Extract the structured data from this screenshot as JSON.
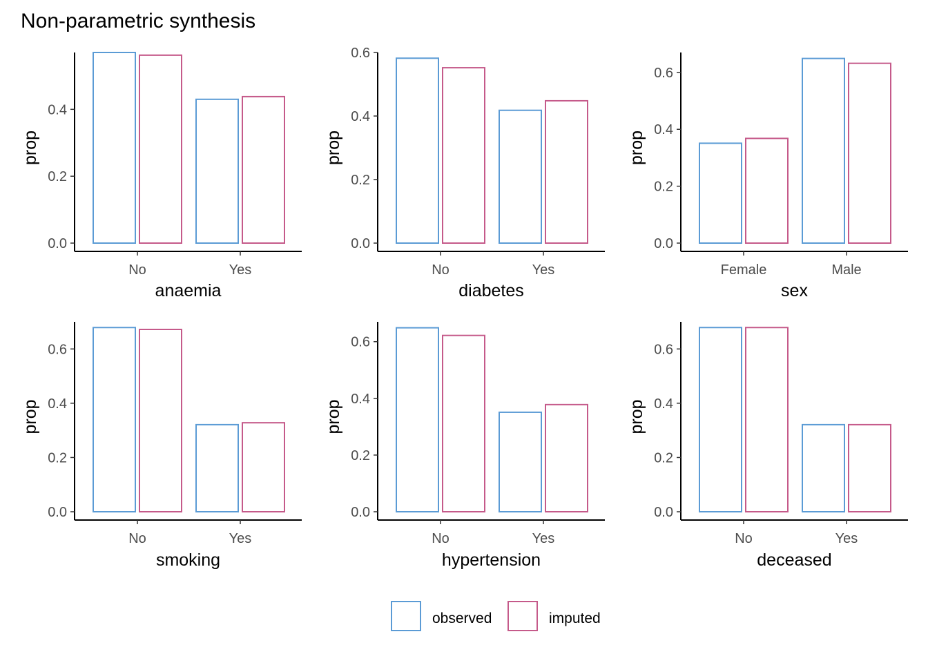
{
  "title": "Non-parametric synthesis",
  "colors": {
    "observed": "#5b9bd5",
    "imputed": "#c55a8a",
    "axis": "#000000",
    "tick_label": "#4d4d4d"
  },
  "legend": {
    "position": "bottom",
    "items": [
      "observed",
      "imputed"
    ]
  },
  "chart_data": [
    {
      "type": "bar",
      "xlabel": "anaemia",
      "ylabel": "prop",
      "categories": [
        "No",
        "Yes"
      ],
      "series": [
        {
          "name": "observed",
          "values": [
            0.57,
            0.43
          ]
        },
        {
          "name": "imputed",
          "values": [
            0.562,
            0.438
          ]
        }
      ],
      "ylim": [
        0,
        0.57
      ],
      "yticks": [
        "0.0",
        "0.2",
        "0.4"
      ],
      "ytick_values": [
        0,
        0.2,
        0.4
      ]
    },
    {
      "type": "bar",
      "xlabel": "diabetes",
      "ylabel": "prop",
      "categories": [
        "No",
        "Yes"
      ],
      "series": [
        {
          "name": "observed",
          "values": [
            0.582,
            0.418
          ]
        },
        {
          "name": "imputed",
          "values": [
            0.552,
            0.448
          ]
        }
      ],
      "ylim": [
        0,
        0.6
      ],
      "yticks": [
        "0.0",
        "0.2",
        "0.4",
        "0.6"
      ],
      "ytick_values": [
        0,
        0.2,
        0.4,
        0.6
      ]
    },
    {
      "type": "bar",
      "xlabel": "sex",
      "ylabel": "prop",
      "categories": [
        "Female",
        "Male"
      ],
      "series": [
        {
          "name": "observed",
          "values": [
            0.351,
            0.649
          ]
        },
        {
          "name": "imputed",
          "values": [
            0.368,
            0.632
          ]
        }
      ],
      "ylim": [
        0,
        0.67
      ],
      "yticks": [
        "0.0",
        "0.2",
        "0.4",
        "0.6"
      ],
      "ytick_values": [
        0,
        0.2,
        0.4,
        0.6
      ]
    },
    {
      "type": "bar",
      "xlabel": "smoking",
      "ylabel": "prop",
      "categories": [
        "No",
        "Yes"
      ],
      "series": [
        {
          "name": "observed",
          "values": [
            0.679,
            0.321
          ]
        },
        {
          "name": "imputed",
          "values": [
            0.672,
            0.328
          ]
        }
      ],
      "ylim": [
        0,
        0.7
      ],
      "yticks": [
        "0.0",
        "0.2",
        "0.4",
        "0.6"
      ],
      "ytick_values": [
        0,
        0.2,
        0.4,
        0.6
      ]
    },
    {
      "type": "bar",
      "xlabel": "hypertension",
      "ylabel": "prop",
      "categories": [
        "No",
        "Yes"
      ],
      "series": [
        {
          "name": "observed",
          "values": [
            0.649,
            0.351
          ]
        },
        {
          "name": "imputed",
          "values": [
            0.622,
            0.378
          ]
        }
      ],
      "ylim": [
        0,
        0.67
      ],
      "yticks": [
        "0.0",
        "0.2",
        "0.4",
        "0.6"
      ],
      "ytick_values": [
        0,
        0.2,
        0.4,
        0.6
      ]
    },
    {
      "type": "bar",
      "xlabel": "deceased",
      "ylabel": "prop",
      "categories": [
        "No",
        "Yes"
      ],
      "series": [
        {
          "name": "observed",
          "values": [
            0.679,
            0.321
          ]
        },
        {
          "name": "imputed",
          "values": [
            0.679,
            0.321
          ]
        }
      ],
      "ylim": [
        0,
        0.7
      ],
      "yticks": [
        "0.0",
        "0.2",
        "0.4",
        "0.6"
      ],
      "ytick_values": [
        0,
        0.2,
        0.4,
        0.6
      ]
    }
  ]
}
